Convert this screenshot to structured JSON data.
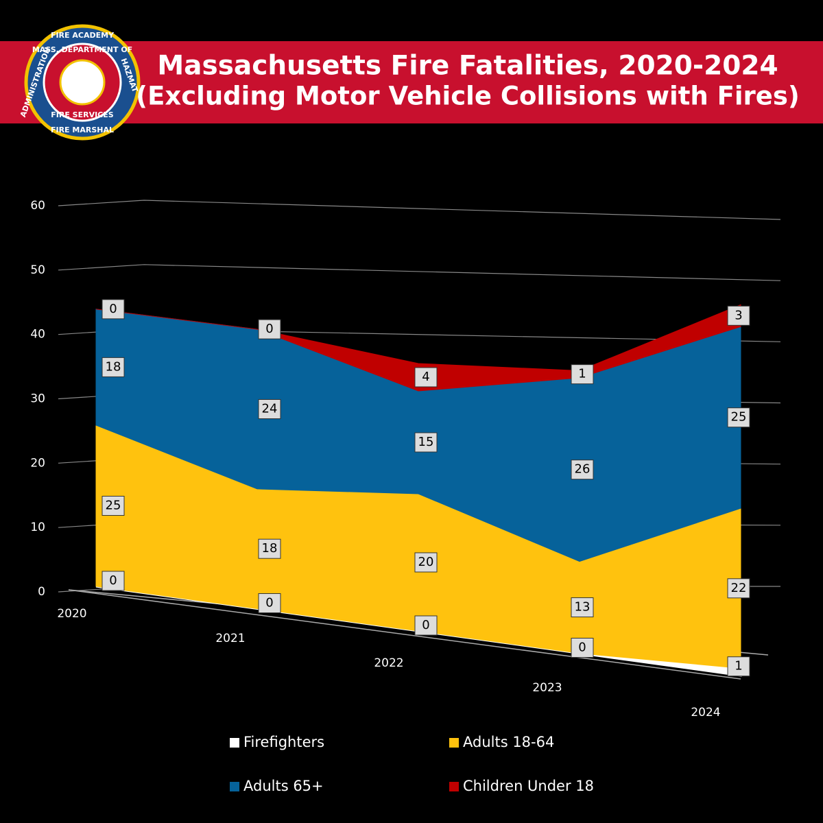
{
  "logo": {
    "top": "FIRE ACADEMY",
    "ring_top": "MASS. DEPARTMENT OF",
    "ring_bottom": "FIRE SERVICES",
    "bottom": "FIRE MARSHAL",
    "left": "ADMINISTRATION",
    "right": "HAZMAT"
  },
  "chart_data": {
    "type": "area",
    "stacked": true,
    "title": "Massachusetts Fire Fatalities, 2020-2024",
    "subtitle": "(Excluding Motor Vehicle Collisions with Fires)",
    "categories": [
      "2020",
      "2021",
      "2022",
      "2023",
      "2024"
    ],
    "series": [
      {
        "name": "Firefighters",
        "color": "#ffffff",
        "values": [
          0,
          0,
          0,
          0,
          1
        ]
      },
      {
        "name": "Adults 18-64",
        "color": "#ffc20e",
        "values": [
          25,
          18,
          20,
          13,
          22
        ]
      },
      {
        "name": "Adults 65+",
        "color": "#06629a",
        "values": [
          18,
          24,
          15,
          26,
          25
        ]
      },
      {
        "name": "Children Under 18",
        "color": "#c00000",
        "values": [
          0,
          0,
          4,
          1,
          3
        ]
      }
    ],
    "ylim": [
      0,
      60
    ],
    "yticks": [
      0,
      10,
      20,
      30,
      40,
      50,
      60
    ],
    "grid": true
  }
}
